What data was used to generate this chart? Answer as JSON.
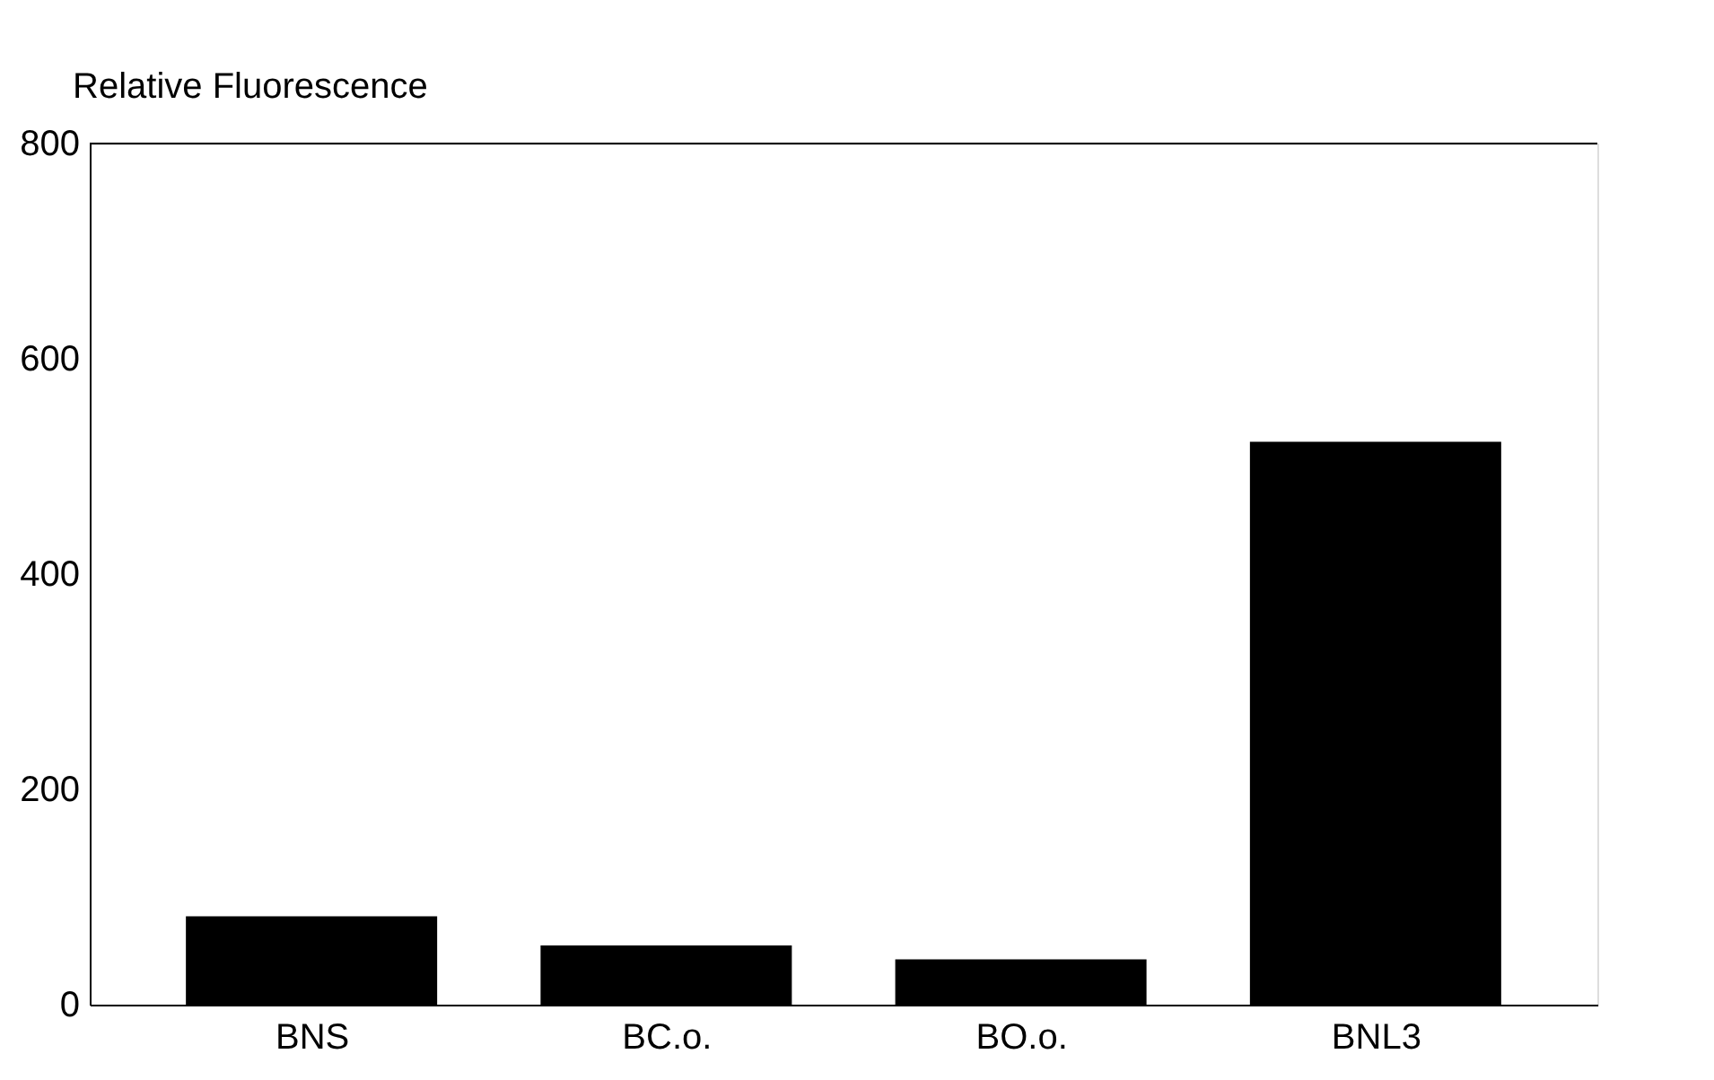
{
  "chart_data": {
    "type": "bar",
    "ylabel": "Relative Fluorescence",
    "categories": [
      "BNS",
      "BC.o.",
      "BO.o.",
      "BNL3"
    ],
    "values": [
      82,
      55,
      42,
      523
    ],
    "color": "#000000",
    "ylim": [
      0,
      800
    ],
    "yticks": [
      0,
      200,
      400,
      600,
      800
    ],
    "grid": false
  }
}
